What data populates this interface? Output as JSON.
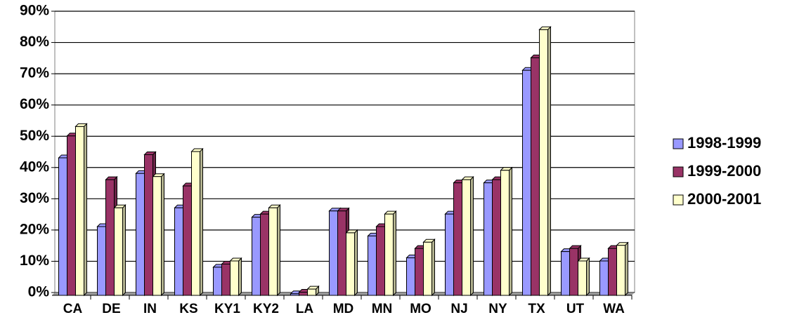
{
  "chart_data": {
    "type": "bar",
    "categories": [
      "CA",
      "DE",
      "IN",
      "KS",
      "KY1",
      "KY2",
      "LA",
      "MD",
      "MN",
      "MO",
      "NJ",
      "NY",
      "TX",
      "UT",
      "WA"
    ],
    "series": [
      {
        "name": "1998-1999",
        "color": "#9999ff",
        "values": [
          44,
          22,
          39,
          28,
          9,
          25,
          0.5,
          27,
          19,
          12,
          26,
          36,
          72,
          14,
          11
        ]
      },
      {
        "name": "1999-2000",
        "color": "#993366",
        "values": [
          51,
          37,
          45,
          35,
          10,
          26,
          1,
          27,
          22,
          15,
          36,
          37,
          76,
          15,
          15
        ]
      },
      {
        "name": "2000-2001",
        "color": "#ffffcc",
        "values": [
          54,
          28,
          38,
          46,
          11,
          28,
          2,
          20,
          26,
          17,
          37,
          40,
          85,
          11,
          16
        ]
      }
    ],
    "ylim": [
      0,
      90
    ],
    "yticks": [
      {
        "value": 0,
        "label": "0%"
      },
      {
        "value": 10,
        "label": "10%"
      },
      {
        "value": 20,
        "label": "20%"
      },
      {
        "value": 30,
        "label": "30%"
      },
      {
        "value": 40,
        "label": "40%"
      },
      {
        "value": 50,
        "label": "50%"
      },
      {
        "value": 60,
        "label": "60%"
      },
      {
        "value": 70,
        "label": "70%"
      },
      {
        "value": 80,
        "label": "80%"
      },
      {
        "value": 90,
        "label": "90%"
      }
    ],
    "grid": true,
    "legend": "right"
  }
}
